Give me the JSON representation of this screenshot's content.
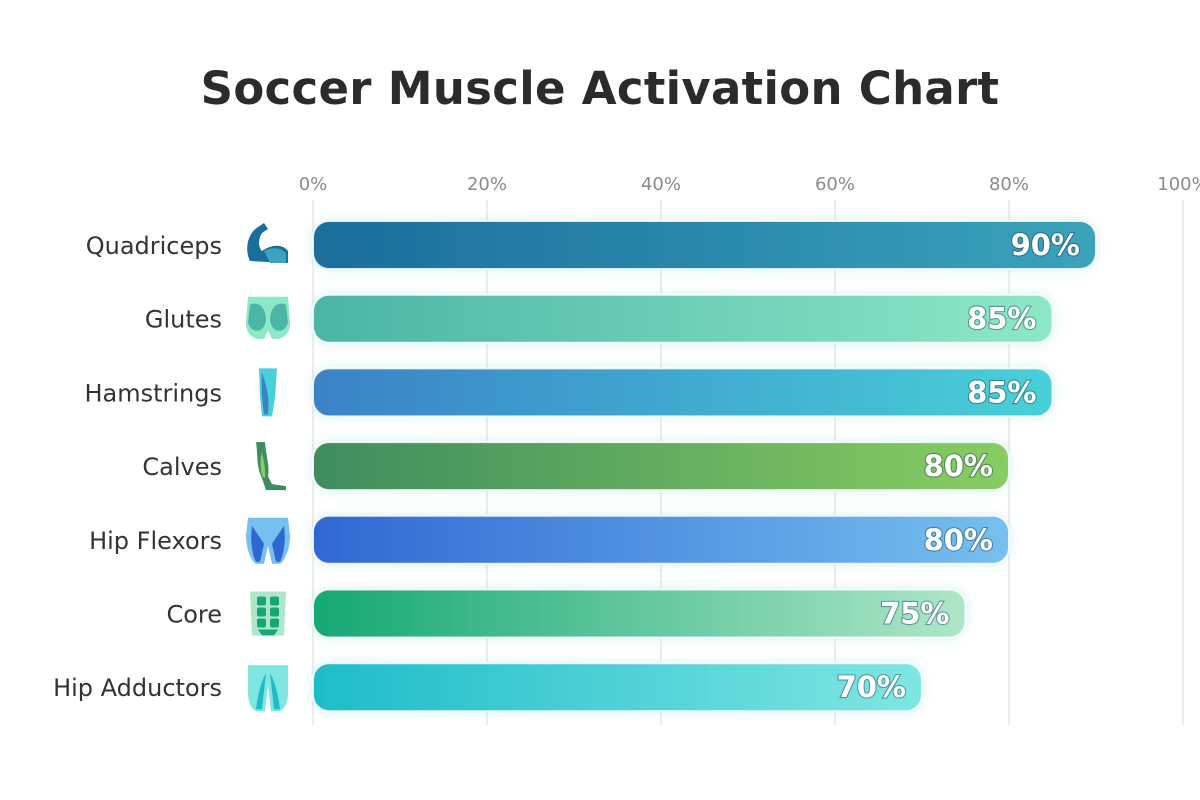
{
  "chart_data": {
    "type": "bar",
    "orientation": "horizontal",
    "title": "Soccer Muscle Activation Chart",
    "xlabel": "",
    "ylabel": "",
    "xlim": [
      0,
      100
    ],
    "ticks": [
      0,
      20,
      40,
      60,
      80,
      100
    ],
    "tick_labels": [
      "0%",
      "20%",
      "40%",
      "60%",
      "80%",
      "100%"
    ],
    "grid": true,
    "categories": [
      "Quadriceps",
      "Glutes",
      "Hamstrings",
      "Calves",
      "Hip Flexors",
      "Core",
      "Hip Adductors"
    ],
    "values": [
      90,
      85,
      85,
      80,
      80,
      75,
      70
    ],
    "value_labels": [
      "90%",
      "85%",
      "85%",
      "80%",
      "80%",
      "75%",
      "70%"
    ],
    "icons": [
      "flexed-arm-icon",
      "glutes-icon",
      "hamstring-leg-icon",
      "calf-leg-icon",
      "hip-flexor-icon",
      "abs-core-icon",
      "hip-adductor-icon"
    ],
    "bar_colors": [
      [
        "#1a6e9c",
        "#3ba3bb"
      ],
      [
        "#4bb5a6",
        "#8de8c6"
      ],
      [
        "#3a82c6",
        "#48d0d8"
      ],
      [
        "#3f8c5e",
        "#88cd62"
      ],
      [
        "#2f68d3",
        "#76c0ef"
      ],
      [
        "#16a874",
        "#ade6c8"
      ],
      [
        "#1ebcc9",
        "#7fe6e2"
      ]
    ]
  }
}
